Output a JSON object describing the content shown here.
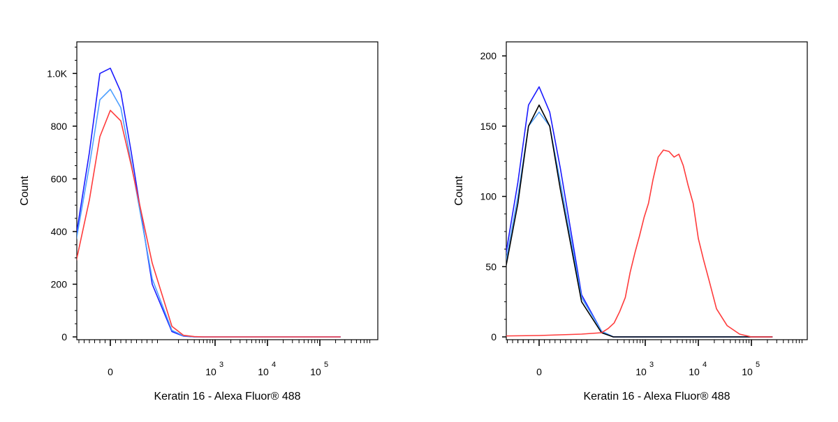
{
  "chart_data": [
    {
      "type": "line",
      "xlabel": "Keratin 16 - Alexa Fluor® 488",
      "ylabel": "Count",
      "x_scale": "biexponential",
      "ylim": [
        0,
        1120
      ],
      "y_ticks": [
        {
          "value": 0,
          "label": "0"
        },
        {
          "value": 200,
          "label": "200"
        },
        {
          "value": 400,
          "label": "400"
        },
        {
          "value": 600,
          "label": "600"
        },
        {
          "value": 800,
          "label": "800"
        },
        {
          "value": 1000,
          "label": "1.0K"
        }
      ],
      "x_ticks": [
        {
          "value": 0,
          "base": "0",
          "exp": ""
        },
        {
          "value": 1000,
          "base": "10",
          "exp": "3"
        },
        {
          "value": 10000,
          "base": "10",
          "exp": "4"
        },
        {
          "value": 100000,
          "base": "10",
          "exp": "5"
        }
      ],
      "grid": false,
      "legend": "none",
      "series": [
        {
          "color": "#1a1aff",
          "x": [
            -300,
            -150,
            -80,
            -40,
            -20,
            0,
            20,
            40,
            80,
            150,
            250,
            400,
            600,
            1000,
            10000,
            100000,
            250000
          ],
          "y": [
            0,
            20,
            200,
            700,
            1000,
            1020,
            930,
            700,
            200,
            20,
            3,
            0,
            0,
            0,
            0,
            0,
            0
          ]
        },
        {
          "color": "#4d9fff",
          "x": [
            -300,
            -150,
            -80,
            -40,
            -20,
            0,
            20,
            40,
            80,
            150,
            250,
            400,
            600,
            1000,
            10000,
            100000,
            250000
          ],
          "y": [
            0,
            20,
            200,
            650,
            900,
            940,
            870,
            660,
            220,
            25,
            4,
            0,
            0,
            0,
            0,
            0,
            0
          ]
        },
        {
          "color": "#ff3b3b",
          "x": [
            -300,
            -150,
            -80,
            -40,
            -20,
            0,
            20,
            40,
            80,
            150,
            250,
            400,
            600,
            1000,
            10000,
            100000,
            250000
          ],
          "y": [
            0,
            15,
            150,
            520,
            760,
            860,
            820,
            650,
            280,
            40,
            6,
            1,
            0,
            0,
            0,
            0,
            0
          ]
        }
      ]
    },
    {
      "type": "line",
      "xlabel": "Keratin 16 - Alexa Fluor® 488",
      "ylabel": "Count",
      "x_scale": "biexponential",
      "ylim": [
        0,
        210
      ],
      "y_ticks": [
        {
          "value": 0,
          "label": "0"
        },
        {
          "value": 50,
          "label": "50"
        },
        {
          "value": 100,
          "label": "100"
        },
        {
          "value": 150,
          "label": "150"
        },
        {
          "value": 200,
          "label": "200"
        }
      ],
      "x_ticks": [
        {
          "value": 0,
          "base": "0",
          "exp": ""
        },
        {
          "value": 1000,
          "base": "10",
          "exp": "3"
        },
        {
          "value": 10000,
          "base": "10",
          "exp": "4"
        },
        {
          "value": 100000,
          "base": "10",
          "exp": "5"
        }
      ],
      "grid": false,
      "legend": "none",
      "series": [
        {
          "color": "#1a1aff",
          "x": [
            -300,
            -150,
            -80,
            -40,
            -20,
            0,
            20,
            40,
            80,
            150,
            250,
            400,
            600,
            1000,
            10000,
            100000,
            250000
          ],
          "y": [
            0,
            2,
            20,
            110,
            165,
            178,
            160,
            120,
            30,
            4,
            0,
            0,
            0,
            0,
            0,
            0,
            0
          ]
        },
        {
          "color": "#4d9fff",
          "x": [
            -300,
            -150,
            -80,
            -40,
            -20,
            0,
            20,
            40,
            80,
            150,
            250,
            400,
            600,
            1000,
            10000,
            100000,
            250000
          ],
          "y": [
            0,
            2,
            18,
            100,
            150,
            160,
            150,
            110,
            28,
            4,
            0,
            0,
            0,
            0,
            0,
            0,
            0
          ]
        },
        {
          "color": "#000000",
          "x": [
            -300,
            -150,
            -80,
            -40,
            -20,
            0,
            20,
            40,
            80,
            150,
            250,
            400,
            600,
            1000,
            10000,
            100000,
            250000
          ],
          "y": [
            0,
            2,
            15,
            95,
            150,
            165,
            150,
            105,
            25,
            3,
            0,
            0,
            0,
            0,
            0,
            0,
            0
          ]
        },
        {
          "color": "#ff3b3b",
          "x": [
            -300,
            -100,
            0,
            80,
            150,
            200,
            260,
            330,
            420,
            520,
            640,
            780,
            950,
            1150,
            1400,
            1750,
            2200,
            2800,
            3500,
            4300,
            5200,
            6400,
            8000,
            10000,
            12500,
            16000,
            22000,
            35000,
            60000,
            100000,
            250000
          ],
          "y": [
            0,
            0.5,
            1,
            2,
            3,
            6,
            10,
            18,
            28,
            46,
            60,
            72,
            85,
            95,
            112,
            128,
            133,
            132,
            128,
            130,
            122,
            108,
            95,
            70,
            55,
            40,
            20,
            8,
            2,
            0,
            0
          ]
        }
      ]
    }
  ]
}
